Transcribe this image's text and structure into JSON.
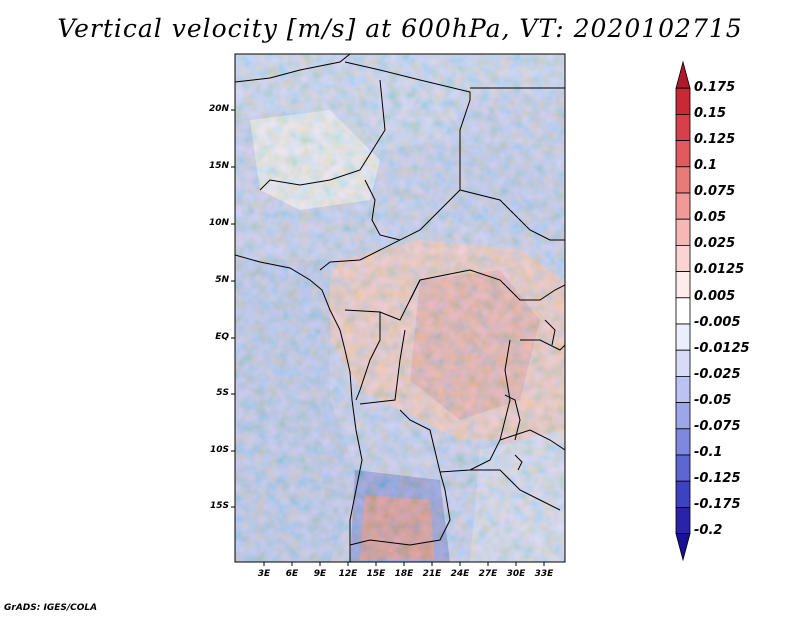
{
  "title": "Vertical velocity [m/s] at 600hPa, VT: 2020102715",
  "credit": "GrADS: IGES/COLA",
  "lat_labels": [
    "20N",
    "15N",
    "10N",
    "5N",
    "EQ",
    "5S",
    "10S",
    "15S"
  ],
  "lon_labels": [
    "3E",
    "6E",
    "9E",
    "12E",
    "15E",
    "18E",
    "21E",
    "24E",
    "27E",
    "30E",
    "33E"
  ],
  "colorbar": {
    "labels": [
      "0.175",
      "0.15",
      "0.125",
      "0.1",
      "0.075",
      "0.05",
      "0.025",
      "0.0125",
      "0.005",
      "-0.005",
      "-0.0125",
      "-0.025",
      "-0.05",
      "-0.075",
      "-0.1",
      "-0.125",
      "-0.175",
      "-0.2"
    ],
    "colors": [
      "#b2182b",
      "#c62a34",
      "#d6404a",
      "#e05a5e",
      "#e87a7a",
      "#ef9a98",
      "#f5b8b5",
      "#f9d4d2",
      "#fdeceb",
      "#ffffff",
      "#ebeefc",
      "#d6dcf8",
      "#bcc3f2",
      "#9ea6ea",
      "#7f88e0",
      "#5e66d2",
      "#3d42c0",
      "#2a22a8",
      "#1a1098"
    ]
  }
}
